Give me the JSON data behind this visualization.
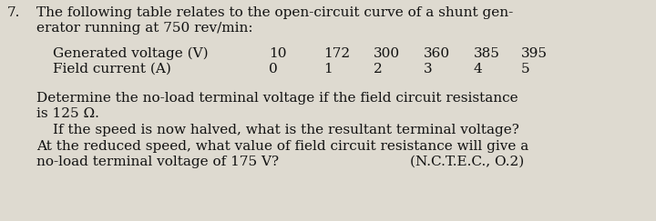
{
  "background_color": "#dedad0",
  "q_num": "7.",
  "line1": "The following table relates to the open-circuit curve of a shunt gen-",
  "line2": "erator running at 750 rev/min:",
  "tbl_lbl1": "Generated voltage (V)",
  "tbl_lbl2": "Field current (A)",
  "tbl_val1_parts": [
    "10",
    "172",
    "300",
    "360",
    "385",
    "395"
  ],
  "tbl_val2_parts": [
    "0",
    "1",
    "2",
    "3",
    "4",
    "5"
  ],
  "tbl_val1_x": [
    295,
    355,
    410,
    465,
    520,
    572
  ],
  "tbl_val2_x": [
    295,
    355,
    410,
    465,
    520,
    572
  ],
  "p1": "Determine the no-load terminal voltage if the field circuit resistance",
  "p2": "is 125 Ω.",
  "p3": "If the speed is now halved, what is the resultant terminal voltage?",
  "p4": "At the reduced speed, what value of field circuit resistance will give a",
  "p5": "no-load terminal voltage of 175 V?",
  "ref": "(N.C.T.E.C., O.2)",
  "fs": 11.0,
  "tc": "#111111"
}
